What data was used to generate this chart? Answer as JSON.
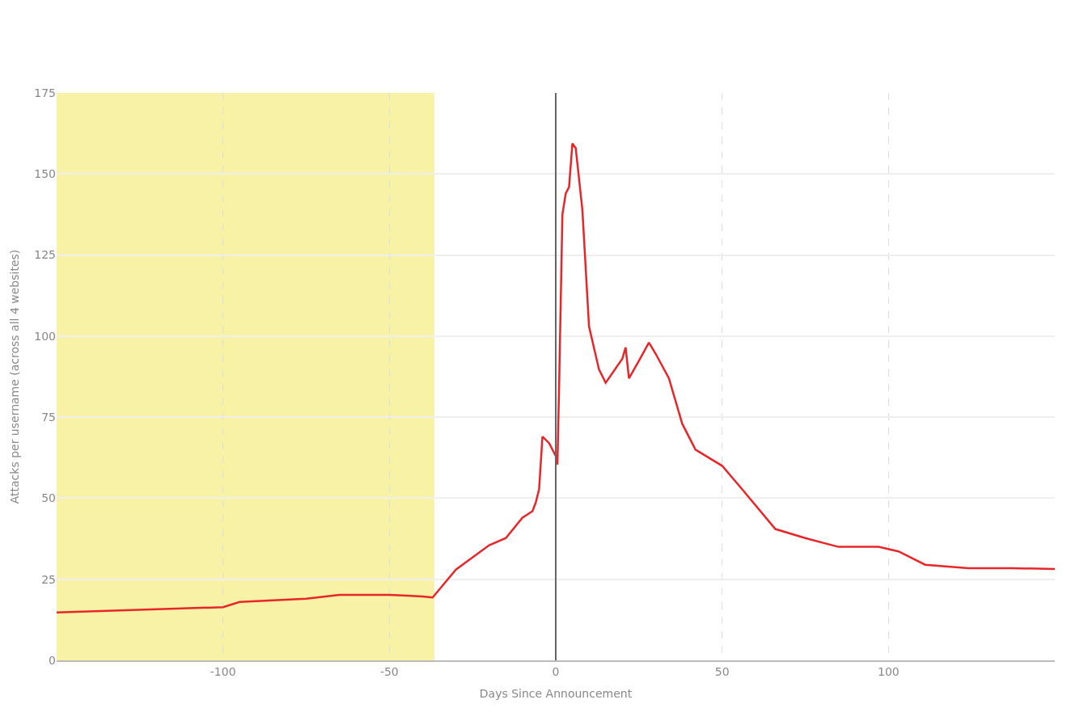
{
  "chart_data": {
    "type": "line",
    "xlabel": "Days Since Announcement",
    "ylabel": "Attacks per username (across all 4 websites)",
    "x": [
      -150,
      -100,
      -95,
      -75,
      -65,
      -50,
      -40,
      -37,
      -30,
      -20,
      -15,
      -10,
      -7,
      -6,
      -5,
      -4,
      -2,
      0,
      0.5,
      1,
      2,
      3,
      4,
      5,
      6,
      8,
      10,
      13,
      15,
      20,
      21,
      22,
      25,
      28,
      30,
      34,
      38,
      42,
      50,
      56,
      66,
      75,
      85,
      97,
      103,
      111,
      124,
      137,
      150
    ],
    "series": [
      {
        "color": "#e8262a",
        "values": [
          14.8,
          16.4,
          18,
          19,
          20.2,
          20.2,
          19.7,
          19.4,
          28,
          35.5,
          37.7,
          44,
          46,
          48.7,
          52.8,
          69,
          67,
          63,
          60.4,
          84,
          137.5,
          144,
          146,
          159.4,
          158,
          139,
          103,
          89.7,
          85.6,
          93,
          96.5,
          87,
          92.4,
          98,
          94.6,
          87,
          73,
          65,
          60,
          52.8,
          40.5,
          37.7,
          35,
          35,
          33.6,
          29.5,
          28.4,
          28.4,
          28.2
        ]
      }
    ],
    "xlim": [
      -150,
      150
    ],
    "ylim": [
      0,
      175
    ],
    "xticks": [
      -100,
      -50,
      0,
      50,
      100
    ],
    "yticks": [
      0,
      25,
      50,
      75,
      100,
      125,
      150,
      175
    ],
    "grid": true,
    "marker": "none",
    "line_style": "solid",
    "bands": [
      {
        "axis": "x",
        "from": -150,
        "to": -36.5,
        "color": "#f7f2a6"
      }
    ],
    "ref_lines": [
      {
        "axis": "x",
        "value": 0,
        "color": "#666666"
      }
    ]
  }
}
